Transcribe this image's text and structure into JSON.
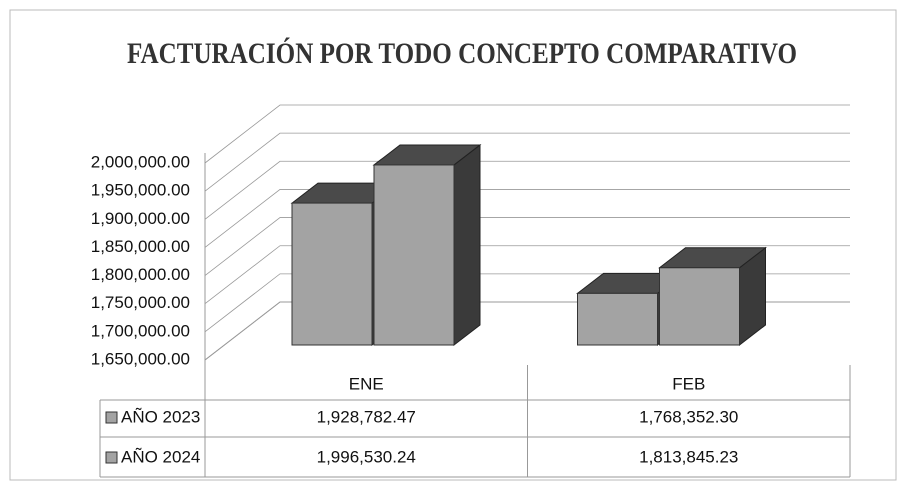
{
  "chart_data": {
    "type": "bar3d",
    "title": "FACTURACIÓN POR TODO CONCEPTO COMPARATIVO",
    "categories": [
      "ENE",
      "FEB"
    ],
    "series": [
      {
        "name": "AÑO 2023",
        "color": "#a3a3a3",
        "values": [
          1928782.47,
          1768352.3
        ],
        "value_labels": [
          "1,928,782.47",
          "1,768,352.30"
        ]
      },
      {
        "name": "AÑO 2024",
        "color": "#a3a3a3",
        "values": [
          1996530.24,
          1813845.23
        ],
        "value_labels": [
          "1,996,530.24",
          "1,813,845.23"
        ]
      }
    ],
    "ylim": [
      1650000,
      2000000
    ],
    "yticks": [
      {
        "value": 1650000,
        "label": "1,650,000.00"
      },
      {
        "value": 1700000,
        "label": "1,700,000.00"
      },
      {
        "value": 1750000,
        "label": "1,750,000.00"
      },
      {
        "value": 1800000,
        "label": "1,800,000.00"
      },
      {
        "value": 1850000,
        "label": "1,850,000.00"
      },
      {
        "value": 1900000,
        "label": "1,900,000.00"
      },
      {
        "value": 1950000,
        "label": "1,950,000.00"
      },
      {
        "value": 2000000,
        "label": "2,000,000.00"
      }
    ],
    "grid": true
  }
}
